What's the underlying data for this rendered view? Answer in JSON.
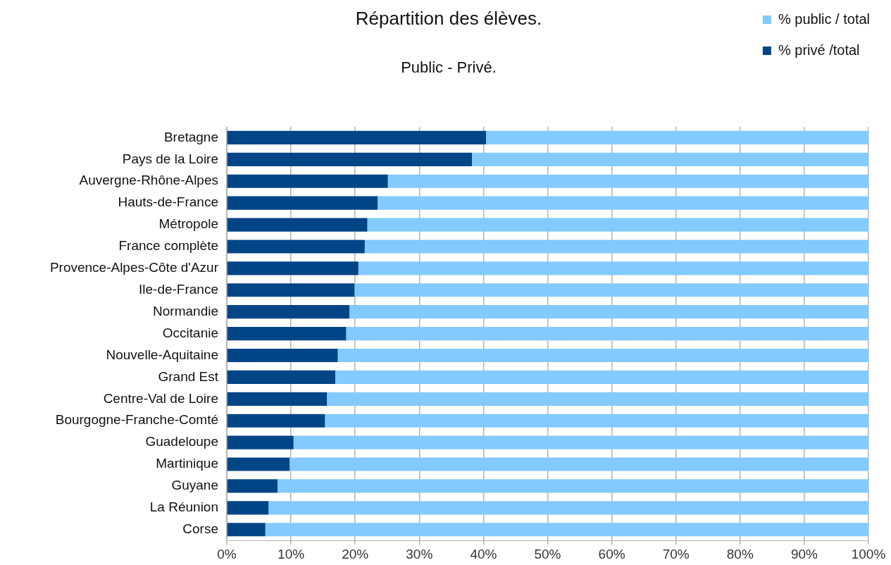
{
  "chart_data": {
    "type": "bar",
    "orientation": "horizontal",
    "stacked": true,
    "title": "Répartition des élèves.",
    "subtitle": "Public - Privé.",
    "categories": [
      "Bretagne",
      "Pays de la Loire",
      "Auvergne-Rhône-Alpes",
      "Hauts-de-France",
      "Métropole",
      "France complète",
      "Provence-Alpes-Côte d'Azur",
      "Ile-de-France",
      "Normandie",
      "Occitanie",
      "Nouvelle-Aquitaine",
      "Grand Est",
      "Centre-Val de Loire",
      "Bourgogne-Franche-Comté",
      "Guadeloupe",
      "Martinique",
      "Guyane",
      "La Réunion",
      "Corse"
    ],
    "series": [
      {
        "name": "% privé /total",
        "color": "#004586",
        "values": [
          40.4,
          38.2,
          25.1,
          23.5,
          21.9,
          21.5,
          20.5,
          19.9,
          19.1,
          18.6,
          17.3,
          16.9,
          15.6,
          15.3,
          10.4,
          9.8,
          7.9,
          6.5,
          6.0
        ]
      },
      {
        "name": "% public / total",
        "color": "#83caff",
        "values": [
          59.6,
          61.8,
          74.9,
          76.5,
          78.1,
          78.5,
          79.5,
          80.1,
          80.9,
          81.4,
          82.7,
          83.1,
          84.4,
          84.7,
          89.6,
          90.2,
          92.1,
          93.5,
          94.0
        ]
      }
    ],
    "xlim": [
      0,
      100
    ],
    "xticks": [
      {
        "value": 0,
        "label": "0%"
      },
      {
        "value": 10,
        "label": "10%"
      },
      {
        "value": 20,
        "label": "20%"
      },
      {
        "value": 30,
        "label": "30%"
      },
      {
        "value": 40,
        "label": "40%"
      },
      {
        "value": 50,
        "label": "50%"
      },
      {
        "value": 60,
        "label": "60%"
      },
      {
        "value": 70,
        "label": "70%"
      },
      {
        "value": 80,
        "label": "80%"
      },
      {
        "value": 90,
        "label": "90%"
      },
      {
        "value": 100,
        "label": "100%"
      }
    ],
    "grid": "x",
    "legend": "top right"
  }
}
